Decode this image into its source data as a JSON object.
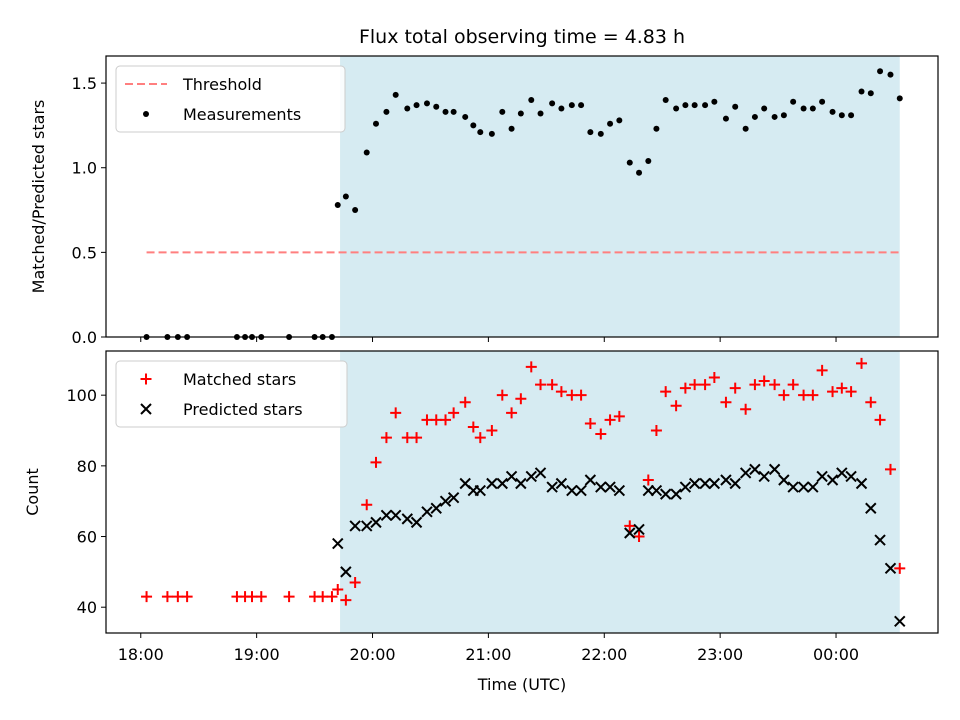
{
  "title": "Flux total observing time = 4.83 h",
  "colors": {
    "threshold": "#ff7f7f",
    "measurements": "#000000",
    "matched": "#ff0000",
    "predicted": "#000000",
    "observing_span": "#add8e6"
  },
  "chart_data": [
    {
      "type": "scatter",
      "panel": "top",
      "ylabel": "Matched/Predicted stars",
      "ylim": [
        0,
        1.66
      ],
      "yticks": [
        0.0,
        0.5,
        1.0,
        1.5
      ],
      "ytick_labels": [
        "0.0",
        "0.5",
        "1.0",
        "1.5"
      ],
      "xlim_hours": [
        17.7,
        24.88
      ],
      "shaded_span_hours": [
        19.72,
        24.55
      ],
      "legend": {
        "position": "top-left",
        "entries": [
          "Threshold",
          "Measurements"
        ]
      },
      "threshold": {
        "name": "Threshold",
        "value": 0.5,
        "x_range_hours": [
          18.05,
          24.55
        ]
      },
      "measurements": {
        "name": "Measurements",
        "x_hours": [
          18.05,
          18.23,
          18.32,
          18.4,
          18.83,
          18.9,
          18.96,
          19.04,
          19.28,
          19.5,
          19.57,
          19.65,
          19.7,
          19.77,
          19.85,
          19.95,
          20.03,
          20.12,
          20.2,
          20.3,
          20.38,
          20.47,
          20.55,
          20.63,
          20.7,
          20.8,
          20.87,
          20.93,
          21.03,
          21.12,
          21.2,
          21.28,
          21.37,
          21.45,
          21.55,
          21.63,
          21.72,
          21.8,
          21.88,
          21.97,
          22.05,
          22.13,
          22.22,
          22.3,
          22.38,
          22.45,
          22.53,
          22.62,
          22.7,
          22.78,
          22.87,
          22.95,
          23.05,
          23.13,
          23.22,
          23.3,
          23.38,
          23.47,
          23.55,
          23.63,
          23.72,
          23.8,
          23.88,
          23.97,
          24.05,
          24.13,
          24.22,
          24.3,
          24.38,
          24.47,
          24.55
        ],
        "y": [
          0,
          0,
          0,
          0,
          0,
          0,
          0,
          0,
          0,
          0,
          0,
          0,
          0.78,
          0.83,
          0.75,
          1.09,
          1.26,
          1.33,
          1.43,
          1.35,
          1.37,
          1.38,
          1.36,
          1.33,
          1.33,
          1.3,
          1.25,
          1.21,
          1.2,
          1.33,
          1.23,
          1.32,
          1.4,
          1.32,
          1.38,
          1.35,
          1.37,
          1.37,
          1.21,
          1.2,
          1.26,
          1.28,
          1.03,
          0.97,
          1.04,
          1.23,
          1.4,
          1.35,
          1.37,
          1.37,
          1.37,
          1.39,
          1.29,
          1.36,
          1.23,
          1.3,
          1.35,
          1.3,
          1.31,
          1.39,
          1.35,
          1.35,
          1.39,
          1.33,
          1.31,
          1.31,
          1.45,
          1.44,
          1.57,
          1.55,
          1.41
        ]
      }
    },
    {
      "type": "scatter",
      "panel": "bottom",
      "xlabel": "Time (UTC)",
      "ylabel": "Count",
      "ylim": [
        32.7,
        112.5
      ],
      "yticks": [
        40,
        60,
        80,
        100
      ],
      "ytick_labels": [
        "40",
        "60",
        "80",
        "100"
      ],
      "xlim_hours": [
        17.7,
        24.88
      ],
      "xticks_hours": [
        18,
        19,
        20,
        21,
        22,
        23,
        24
      ],
      "xtick_labels": [
        "18:00",
        "19:00",
        "20:00",
        "21:00",
        "22:00",
        "23:00",
        "00:00"
      ],
      "shaded_span_hours": [
        19.72,
        24.55
      ],
      "legend": {
        "position": "top-left",
        "entries": [
          "Matched stars",
          "Predicted stars"
        ]
      },
      "series": [
        {
          "name": "Matched stars",
          "marker": "plus",
          "x_hours": [
            18.05,
            18.23,
            18.32,
            18.4,
            18.83,
            18.9,
            18.96,
            19.04,
            19.28,
            19.5,
            19.57,
            19.65,
            19.7,
            19.77,
            19.85,
            19.95,
            20.03,
            20.12,
            20.2,
            20.3,
            20.38,
            20.47,
            20.55,
            20.63,
            20.7,
            20.8,
            20.87,
            20.93,
            21.03,
            21.12,
            21.2,
            21.28,
            21.37,
            21.45,
            21.55,
            21.63,
            21.72,
            21.8,
            21.88,
            21.97,
            22.05,
            22.13,
            22.22,
            22.3,
            22.38,
            22.45,
            22.53,
            22.62,
            22.7,
            22.78,
            22.87,
            22.95,
            23.05,
            23.13,
            23.22,
            23.3,
            23.38,
            23.47,
            23.55,
            23.63,
            23.72,
            23.8,
            23.88,
            23.97,
            24.05,
            24.13,
            24.22,
            24.3,
            24.38,
            24.47,
            24.55
          ],
          "y": [
            43,
            43,
            43,
            43,
            43,
            43,
            43,
            43,
            43,
            43,
            43,
            43,
            45,
            42,
            47,
            69,
            81,
            88,
            95,
            88,
            88,
            93,
            93,
            93,
            95,
            98,
            91,
            88,
            90,
            100,
            95,
            99,
            108,
            103,
            103,
            101,
            100,
            100,
            92,
            89,
            93,
            94,
            63,
            60,
            76,
            90,
            101,
            97,
            102,
            103,
            103,
            105,
            98,
            102,
            96,
            103,
            104,
            103,
            100,
            103,
            100,
            100,
            107,
            101,
            102,
            101,
            109,
            98,
            93,
            79,
            51
          ]
        },
        {
          "name": "Predicted stars",
          "marker": "x",
          "x_hours": [
            19.7,
            19.77,
            19.85,
            19.95,
            20.03,
            20.12,
            20.2,
            20.3,
            20.38,
            20.47,
            20.55,
            20.63,
            20.7,
            20.8,
            20.87,
            20.93,
            21.03,
            21.12,
            21.2,
            21.28,
            21.37,
            21.45,
            21.55,
            21.63,
            21.72,
            21.8,
            21.88,
            21.97,
            22.05,
            22.13,
            22.22,
            22.3,
            22.38,
            22.45,
            22.53,
            22.62,
            22.7,
            22.78,
            22.87,
            22.95,
            23.05,
            23.13,
            23.22,
            23.3,
            23.38,
            23.47,
            23.55,
            23.63,
            23.72,
            23.8,
            23.88,
            23.97,
            24.05,
            24.13,
            24.22,
            24.3,
            24.38,
            24.47,
            24.55
          ],
          "y": [
            58,
            50,
            63,
            63,
            64,
            66,
            66,
            65,
            64,
            67,
            68,
            70,
            71,
            75,
            73,
            73,
            75,
            75,
            77,
            75,
            77,
            78,
            74,
            75,
            73,
            73,
            76,
            74,
            74,
            73,
            61,
            62,
            73,
            73,
            72,
            72,
            74,
            75,
            75,
            75,
            76,
            75,
            78,
            79,
            77,
            79,
            76,
            74,
            74,
            74,
            77,
            76,
            78,
            77,
            75,
            68,
            59,
            51,
            36
          ]
        }
      ]
    }
  ]
}
